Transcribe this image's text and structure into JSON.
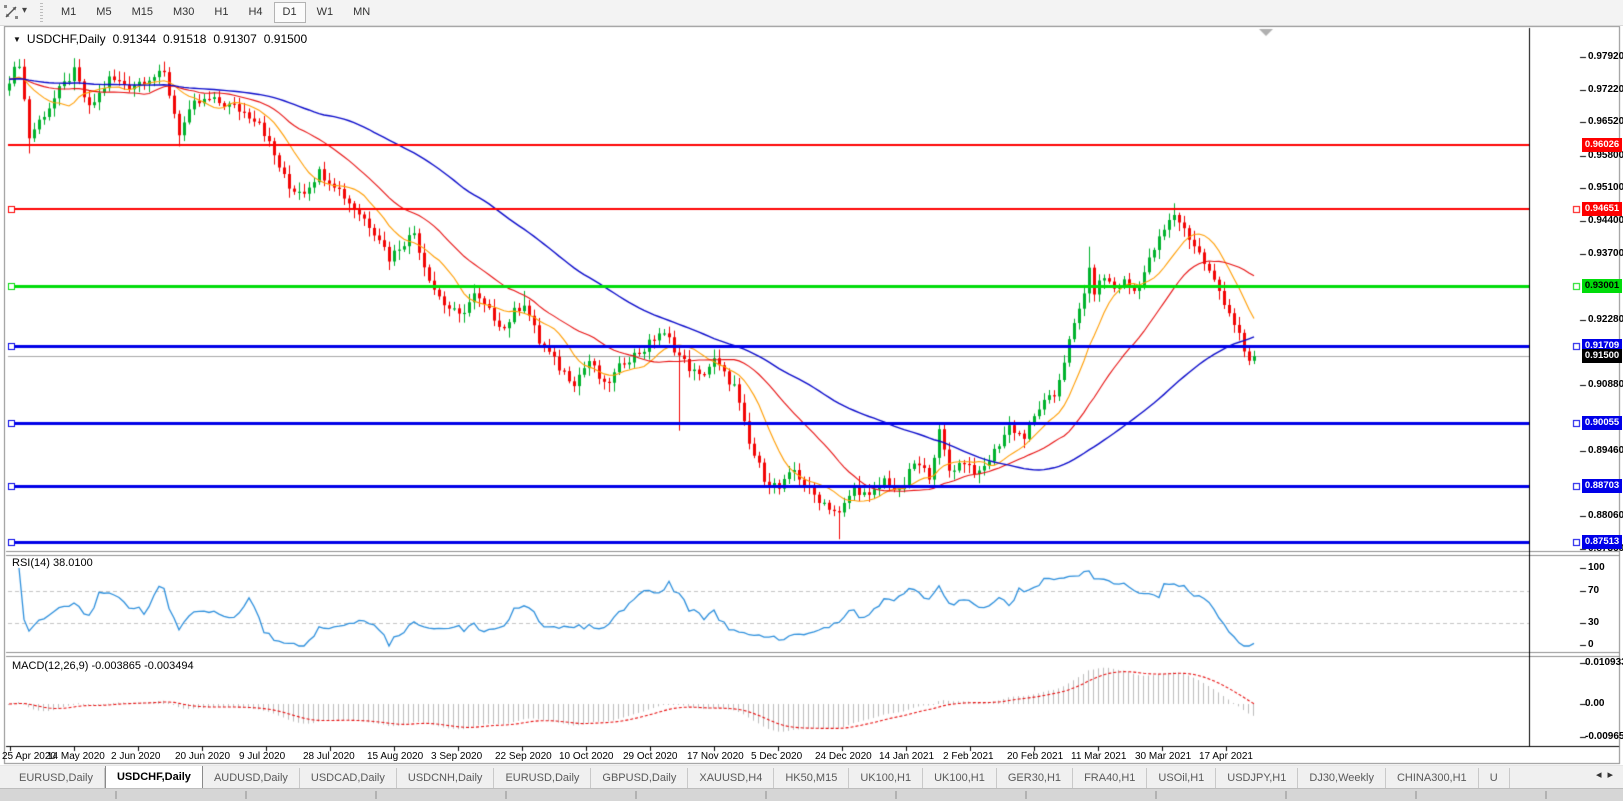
{
  "toolbar": {
    "pointer_tool": "cursor-tool",
    "timeframes": [
      {
        "label": "M1"
      },
      {
        "label": "M5"
      },
      {
        "label": "M15"
      },
      {
        "label": "M30"
      },
      {
        "label": "H1"
      },
      {
        "label": "H4"
      },
      {
        "label": "D1"
      },
      {
        "label": "W1"
      },
      {
        "label": "MN"
      }
    ],
    "active_timeframe": "D1"
  },
  "chart": {
    "header": {
      "symbol": "USDCHF,Daily",
      "open": "0.91344",
      "high": "0.91518",
      "low": "0.91307",
      "close": "0.91500"
    },
    "price_axis": {
      "ticks": [
        {
          "label": "0.97920",
          "price": 0.9792
        },
        {
          "label": "0.97220",
          "price": 0.9722
        },
        {
          "label": "0.96520",
          "price": 0.9652
        },
        {
          "label": "0.95800",
          "price": 0.958
        },
        {
          "label": "0.95100",
          "price": 0.951
        },
        {
          "label": "0.94400",
          "price": 0.944
        },
        {
          "label": "0.93700",
          "price": 0.937
        },
        {
          "label": "0.92280",
          "price": 0.9228
        },
        {
          "label": "0.90880",
          "price": 0.9088
        },
        {
          "label": "0.89460",
          "price": 0.8946
        },
        {
          "label": "0.88060",
          "price": 0.8806
        },
        {
          "label": "0.87360",
          "price": 0.8736
        }
      ]
    },
    "lines": [
      {
        "label": "0.96026",
        "price": 0.96026,
        "color": "#fe0000",
        "tag_fg": "#ffffff",
        "width": 2,
        "selected": false
      },
      {
        "label": "0.94651",
        "price": 0.94651,
        "color": "#fe0000",
        "tag_fg": "#ffffff",
        "width": 2,
        "selected": true
      },
      {
        "label": "0.93001",
        "price": 0.93001,
        "color": "#00dc0a",
        "tag_fg": "#000000",
        "width": 3,
        "selected": true
      },
      {
        "label": "0.91709",
        "price": 0.91709,
        "color": "#0000e8",
        "tag_fg": "#ffffff",
        "width": 3,
        "selected": true
      },
      {
        "label": "0.90055",
        "price": 0.90055,
        "color": "#0000e8",
        "tag_fg": "#ffffff",
        "width": 3,
        "selected": true
      },
      {
        "label": "0.88703",
        "price": 0.88703,
        "color": "#0000e8",
        "tag_fg": "#ffffff",
        "width": 3,
        "selected": true
      },
      {
        "label": "0.87513",
        "price": 0.87513,
        "color": "#0000e8",
        "tag_fg": "#ffffff",
        "width": 3,
        "selected": true
      }
    ],
    "current_price": {
      "label": "0.91500",
      "price": 0.915,
      "tag_bg": "#000000",
      "tag_fg": "#ffffff",
      "line_color": "#a8a8a8"
    }
  },
  "rsi": {
    "title": "RSI(14) 38.0100",
    "axis_labels": [
      "100",
      "70",
      "30",
      "0"
    ],
    "levels": [
      70,
      30
    ],
    "line_color": "#2e90dd"
  },
  "macd": {
    "title": "MACD(12,26,9) -0.003865 -0.003494",
    "axis_labels": [
      "0.010933",
      "0.00",
      "-0.009653"
    ],
    "histogram_color": "#bdbdbd",
    "signal_color": "#e81010"
  },
  "date_axis": {
    "labels": [
      "25 Apr 2020",
      "14 May 2020",
      "2 Jun 2020",
      "20 Jun 2020",
      "9 Jul 2020",
      "28 Jul 2020",
      "15 Aug 2020",
      "3 Sep 2020",
      "22 Sep 2020",
      "10 Oct 2020",
      "29 Oct 2020",
      "17 Nov 2020",
      "5 Dec 2020",
      "24 Dec 2020",
      "14 Jan 2021",
      "2 Feb 2021",
      "20 Feb 2021",
      "11 Mar 2021",
      "30 Mar 2021",
      "17 Apr 2021"
    ]
  },
  "tabs": {
    "items": [
      {
        "label": "EURUSD,Daily"
      },
      {
        "label": "USDCHF,Daily"
      },
      {
        "label": "AUDUSD,Daily"
      },
      {
        "label": "USDCAD,Daily"
      },
      {
        "label": "USDCNH,Daily"
      },
      {
        "label": "EURUSD,Daily"
      },
      {
        "label": "GBPUSD,Daily"
      },
      {
        "label": "XAUUSD,H4"
      },
      {
        "label": "HK50,M15"
      },
      {
        "label": "UK100,H1"
      },
      {
        "label": "UK100,H1"
      },
      {
        "label": "GER30,H1"
      },
      {
        "label": "FRA40,H1"
      },
      {
        "label": "USOil,H1"
      },
      {
        "label": "USDJPY,H1"
      },
      {
        "label": "DJ30,Weekly"
      },
      {
        "label": "CHINA300,H1"
      },
      {
        "label": "U"
      }
    ],
    "active_index": 1,
    "scroll_left": "◂",
    "scroll_right": "▸"
  },
  "chart_data": {
    "type": "candlestick",
    "symbol": "USDCHF",
    "timeframe": "Daily",
    "ohlc_current": {
      "open": 0.91344,
      "high": 0.91518,
      "low": 0.91307,
      "close": 0.915
    },
    "y_range": [
      0.8734,
      0.9854
    ],
    "y_axis_ticks": [
      0.9792,
      0.9722,
      0.9652,
      0.958,
      0.951,
      0.944,
      0.937,
      0.9228,
      0.9088,
      0.8946,
      0.8806,
      0.8736
    ],
    "x_axis_dates": [
      "25 Apr 2020",
      "14 May 2020",
      "2 Jun 2020",
      "20 Jun 2020",
      "9 Jul 2020",
      "28 Jul 2020",
      "15 Aug 2020",
      "3 Sep 2020",
      "22 Sep 2020",
      "10 Oct 2020",
      "29 Oct 2020",
      "17 Nov 2020",
      "5 Dec 2020",
      "24 Dec 2020",
      "14 Jan 2021",
      "2 Feb 2021",
      "20 Feb 2021",
      "11 Mar 2021",
      "30 Mar 2021",
      "17 Apr 2021"
    ],
    "candle_count": 250,
    "close_anchors": [
      [
        0,
        0.9745
      ],
      [
        2,
        0.978
      ],
      [
        4,
        0.962
      ],
      [
        6,
        0.9655
      ],
      [
        8,
        0.9685
      ],
      [
        10,
        0.972
      ],
      [
        13,
        0.976
      ],
      [
        16,
        0.968
      ],
      [
        20,
        0.9745
      ],
      [
        24,
        0.973
      ],
      [
        28,
        0.9748
      ],
      [
        31,
        0.9755
      ],
      [
        34,
        0.963
      ],
      [
        37,
        0.969
      ],
      [
        40,
        0.97
      ],
      [
        45,
        0.9685
      ],
      [
        50,
        0.9655
      ],
      [
        53,
        0.958
      ],
      [
        56,
        0.951
      ],
      [
        59,
        0.9505
      ],
      [
        62,
        0.9545
      ],
      [
        65,
        0.952
      ],
      [
        68,
        0.948
      ],
      [
        71,
        0.9445
      ],
      [
        74,
        0.9405
      ],
      [
        76,
        0.936
      ],
      [
        78,
        0.9385
      ],
      [
        81,
        0.9415
      ],
      [
        83,
        0.9345
      ],
      [
        85,
        0.9295
      ],
      [
        87,
        0.9262
      ],
      [
        90,
        0.9235
      ],
      [
        93,
        0.928
      ],
      [
        96,
        0.9245
      ],
      [
        99,
        0.921
      ],
      [
        101,
        0.9245
      ],
      [
        103,
        0.9265
      ],
      [
        106,
        0.918
      ],
      [
        108,
        0.9155
      ],
      [
        110,
        0.9125
      ],
      [
        113,
        0.9095
      ],
      [
        116,
        0.914
      ],
      [
        119,
        0.9085
      ],
      [
        121,
        0.911
      ],
      [
        123,
        0.914
      ],
      [
        127,
        0.9165
      ],
      [
        130,
        0.92
      ],
      [
        132,
        0.9185
      ],
      [
        134,
        0.915
      ],
      [
        136,
        0.9125
      ],
      [
        138,
        0.9105
      ],
      [
        141,
        0.914
      ],
      [
        143,
        0.911
      ],
      [
        145,
        0.9085
      ],
      [
        148,
        0.896
      ],
      [
        151,
        0.889
      ],
      [
        154,
        0.8865
      ],
      [
        157,
        0.8905
      ],
      [
        160,
        0.886
      ],
      [
        163,
        0.8835
      ],
      [
        166,
        0.881
      ],
      [
        169,
        0.887
      ],
      [
        172,
        0.8845
      ],
      [
        175,
        0.8885
      ],
      [
        178,
        0.8855
      ],
      [
        181,
        0.892
      ],
      [
        184,
        0.8895
      ],
      [
        186,
        0.8985
      ],
      [
        188,
        0.8905
      ],
      [
        191,
        0.8925
      ],
      [
        194,
        0.8895
      ],
      [
        197,
        0.8945
      ],
      [
        200,
        0.9
      ],
      [
        203,
        0.8975
      ],
      [
        206,
        0.904
      ],
      [
        209,
        0.9065
      ],
      [
        212,
        0.918
      ],
      [
        214,
        0.925
      ],
      [
        216,
        0.933
      ],
      [
        217,
        0.929
      ],
      [
        219,
        0.932
      ],
      [
        221,
        0.9295
      ],
      [
        223,
        0.931
      ],
      [
        225,
        0.929
      ],
      [
        227,
        0.933
      ],
      [
        229,
        0.938
      ],
      [
        231,
        0.942
      ],
      [
        233,
        0.9455
      ],
      [
        234,
        0.944
      ],
      [
        236,
        0.9405
      ],
      [
        238,
        0.937
      ],
      [
        240,
        0.933
      ],
      [
        242,
        0.929
      ],
      [
        244,
        0.9245
      ],
      [
        246,
        0.9195
      ],
      [
        247,
        0.916
      ],
      [
        248,
        0.914
      ],
      [
        249,
        0.915
      ]
    ],
    "wick_extremes": [
      {
        "i": 4,
        "low": 0.9585
      },
      {
        "i": 34,
        "low": 0.96
      },
      {
        "i": 103,
        "high": 0.929
      },
      {
        "i": 134,
        "low": 0.899
      },
      {
        "i": 166,
        "low": 0.8757
      },
      {
        "i": 186,
        "high": 0.9007
      },
      {
        "i": 216,
        "high": 0.9385
      },
      {
        "i": 233,
        "high": 0.9478
      }
    ],
    "up_color": "#00b22d",
    "down_color": "#f20505",
    "moving_averages": [
      {
        "period": 10,
        "method": "sma",
        "color": "#ff9d00"
      },
      {
        "period": 25,
        "method": "sma",
        "color": "#e81010"
      },
      {
        "period": 60,
        "method": "sma",
        "color": "#0b0bcb"
      }
    ],
    "horizontal_lines": [
      0.96026,
      0.94651,
      0.93001,
      0.91709,
      0.90055,
      0.88703,
      0.87513
    ],
    "current_price": 0.915,
    "indicators": [
      {
        "name": "RSI",
        "period": 14,
        "last_value": 38.01,
        "range": [
          0,
          100
        ],
        "levels": [
          30,
          70
        ]
      },
      {
        "name": "MACD",
        "fast": 12,
        "slow": 26,
        "signal": 9,
        "last_values": [
          -0.003865,
          -0.003494
        ],
        "axis": [
          0.010933,
          0.0,
          -0.009653
        ]
      }
    ]
  }
}
